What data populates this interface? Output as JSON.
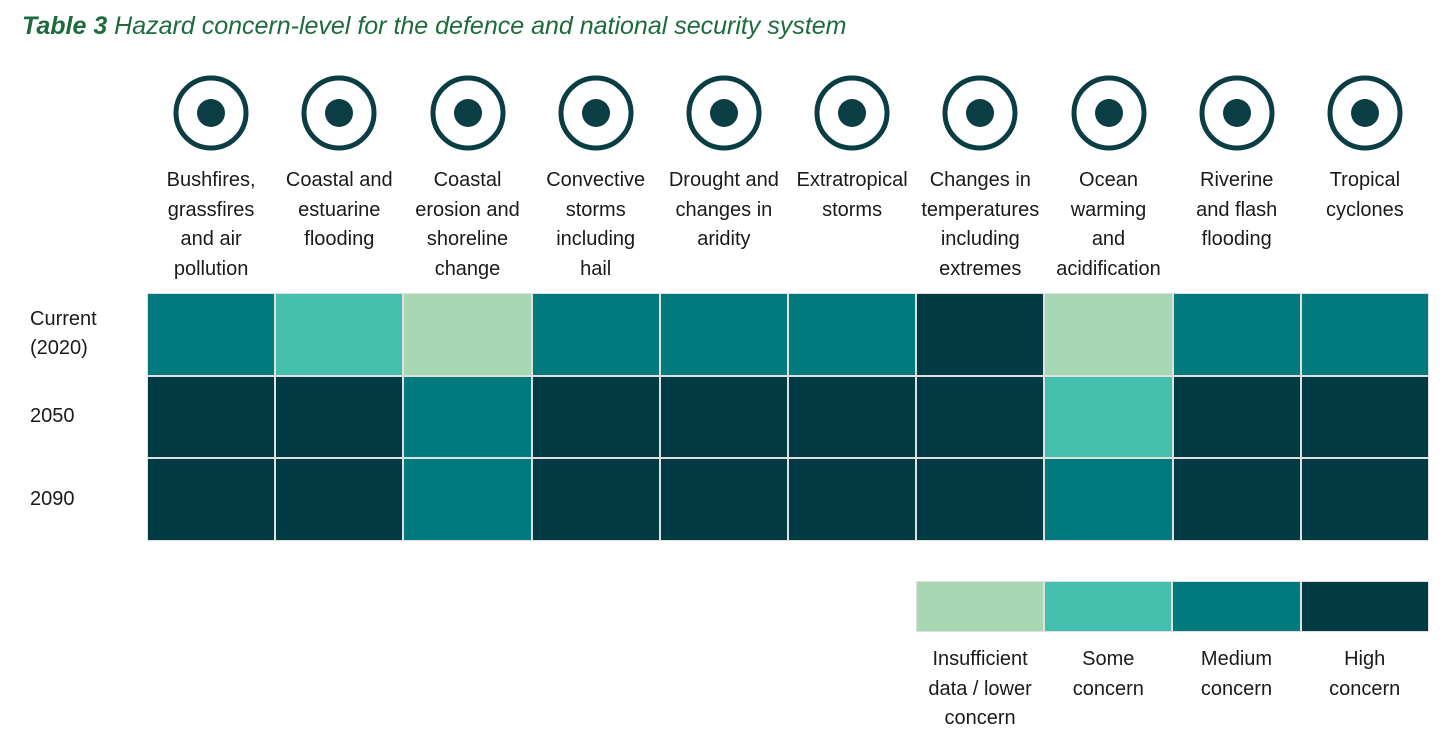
{
  "title": {
    "label": "Table 3",
    "text": "Hazard concern-level for the defence and national security system"
  },
  "columns": [
    {
      "lines": [
        "Bushfires,",
        "grassfires",
        "and air",
        "pollution"
      ]
    },
    {
      "lines": [
        "Coastal and",
        "estuarine",
        "flooding"
      ]
    },
    {
      "lines": [
        "Coastal",
        "erosion and",
        "shoreline",
        "change"
      ]
    },
    {
      "lines": [
        "Convective",
        "storms",
        "including",
        "hail"
      ]
    },
    {
      "lines": [
        "Drought and",
        "changes in",
        "aridity"
      ]
    },
    {
      "lines": [
        "Extratropical",
        "storms"
      ]
    },
    {
      "lines": [
        "Changes in",
        "temperatures",
        "including",
        "extremes"
      ]
    },
    {
      "lines": [
        "Ocean",
        "warming",
        "and",
        "acidification"
      ]
    },
    {
      "lines": [
        "Riverine",
        "and flash",
        "flooding"
      ]
    },
    {
      "lines": [
        "Tropical",
        "cyclones"
      ]
    }
  ],
  "rows": [
    {
      "lines": [
        "Current",
        "(2020)"
      ],
      "colors": [
        "#007a7c",
        "#45bfad",
        "#a8d8b3",
        "#007a7c",
        "#007a7c",
        "#007a7c",
        "#023a44",
        "#a8d8b3",
        "#007a7c",
        "#007a7c"
      ]
    },
    {
      "lines": [
        "2050"
      ],
      "colors": [
        "#023a44",
        "#023a44",
        "#007a7c",
        "#023a44",
        "#023a44",
        "#023a44",
        "#023a44",
        "#45bfad",
        "#023a44",
        "#023a44"
      ]
    },
    {
      "lines": [
        "2090"
      ],
      "colors": [
        "#023a44",
        "#023a44",
        "#007a7c",
        "#023a44",
        "#023a44",
        "#023a44",
        "#023a44",
        "#007a7c",
        "#023a44",
        "#023a44"
      ]
    }
  ],
  "legend": [
    {
      "color": "#a8d8b3",
      "lines": [
        "Insufficient",
        "data / lower",
        "concern"
      ]
    },
    {
      "color": "#45bfad",
      "lines": [
        "Some",
        "concern"
      ]
    },
    {
      "color": "#007a7c",
      "lines": [
        "Medium",
        "concern"
      ]
    },
    {
      "color": "#023a44",
      "lines": [
        "High",
        "concern"
      ]
    }
  ]
}
